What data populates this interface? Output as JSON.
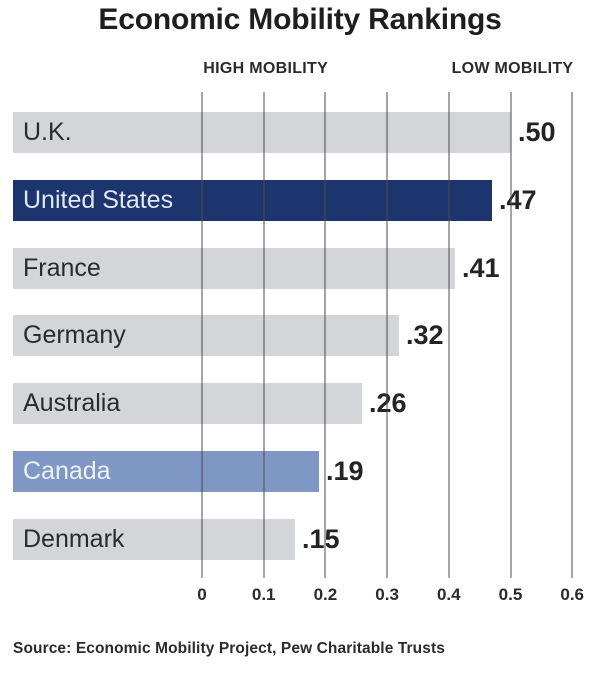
{
  "chart_data": {
    "type": "bar",
    "orientation": "horizontal",
    "title": "Economic Mobility Rankings",
    "axis_annotations": [
      {
        "label": "HIGH MOBILITY",
        "at_value": 0.1
      },
      {
        "label": "LOW MOBILITY",
        "at_value": 0.5
      }
    ],
    "categories": [
      "U.K.",
      "United States",
      "France",
      "Germany",
      "Australia",
      "Canada",
      "Denmark"
    ],
    "values": [
      0.5,
      0.47,
      0.41,
      0.32,
      0.26,
      0.19,
      0.15
    ],
    "value_labels": [
      ".50",
      ".47",
      ".41",
      ".32",
      ".26",
      ".19",
      ".15"
    ],
    "bar_styles": [
      "default",
      "dark",
      "default",
      "default",
      "default",
      "medium",
      "default"
    ],
    "x_tick_labels": [
      "0",
      "0.1",
      "0.2",
      "0.3",
      "0.4",
      "0.5",
      "0.6"
    ],
    "x_tick_values": [
      0,
      0.1,
      0.2,
      0.3,
      0.4,
      0.5,
      0.6
    ],
    "xlim": [
      0,
      0.6
    ],
    "grid": true,
    "legend": "none",
    "colors": {
      "bar_default": "#d4d5d8",
      "bar_dark": "#1c356f",
      "bar_medium": "#7e97c4",
      "label_on_default": "#2b2b2b",
      "label_on_dark": "#e2e7f2",
      "label_on_medium": "#eef1f7",
      "value_text": "#242424",
      "gridline": "#8a8a8a",
      "title_text": "#1e1e1e"
    },
    "source": "Source: Economic Mobility Project, Pew Charitable Trusts"
  }
}
